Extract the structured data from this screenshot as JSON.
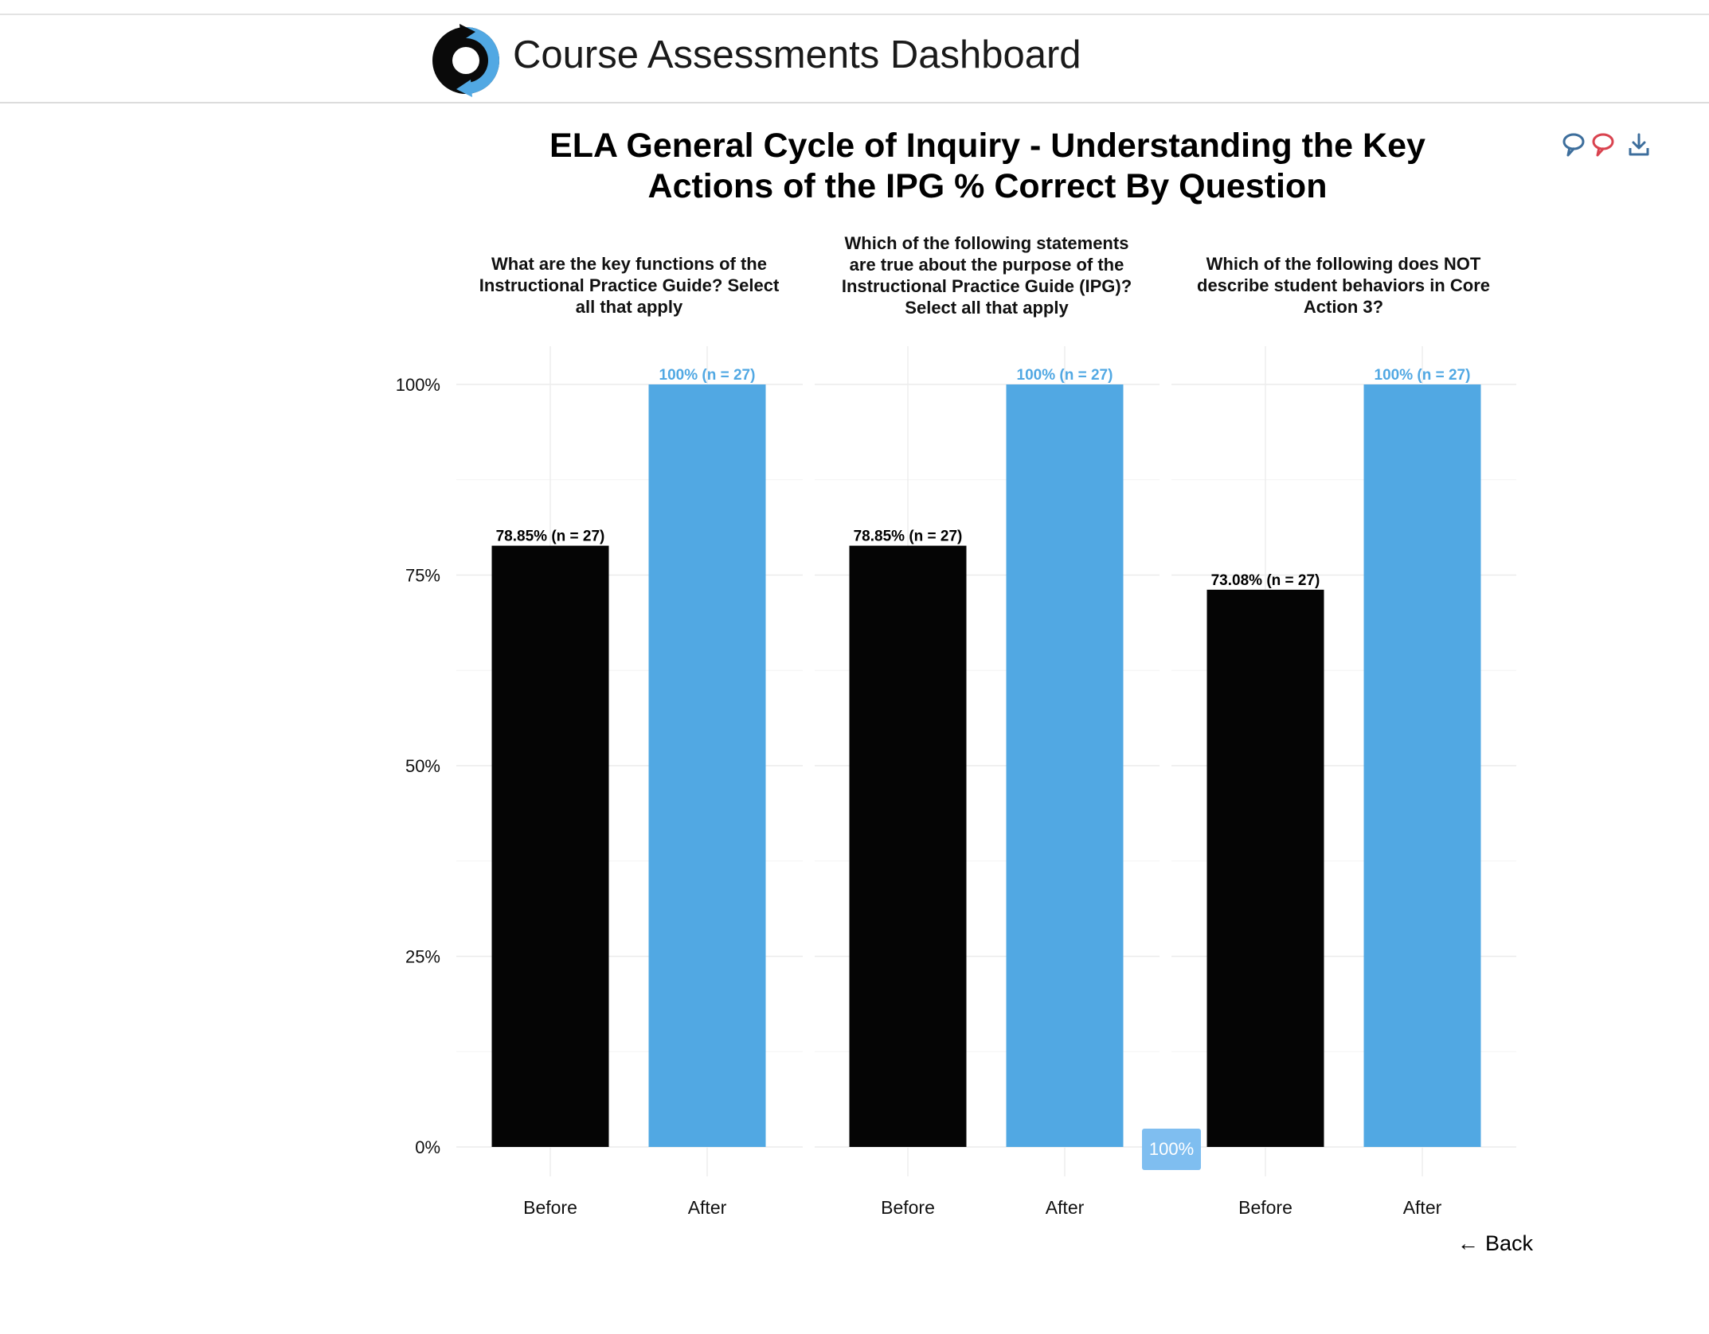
{
  "app": {
    "title": "Course Assessments Dashboard",
    "logo": "circular-arrows-logo"
  },
  "toolbar": {
    "icons": [
      "comment-icon",
      "comment-icon-red",
      "download-icon"
    ],
    "colors": {
      "comment": "#3d6e9c",
      "comment_alt": "#d9434f",
      "download": "#3d6e9c"
    }
  },
  "chart_data": {
    "type": "bar",
    "title": "ELA General Cycle of Inquiry - Understanding the Key Actions of the IPG % Correct By Question",
    "ylim": [
      0,
      100
    ],
    "ytick_values": [
      0,
      25,
      50,
      75,
      100
    ],
    "yticks": [
      "0%",
      "25%",
      "50%",
      "75%",
      "100%"
    ],
    "grid": true,
    "categories": [
      "Before",
      "After"
    ],
    "colors": {
      "Before": "#050505",
      "After": "#51a8e3"
    },
    "facets": [
      {
        "title": "What are the key functions of the Instructional Practice Guide? Select all that apply",
        "values": [
          78.85,
          100
        ],
        "labels": [
          "78.85% (n = 27)",
          "100% (n = 27)"
        ]
      },
      {
        "title": "Which of the following statements are true about the purpose of the Instructional Practice Guide (IPG)? Select all that apply",
        "values": [
          78.85,
          100
        ],
        "labels": [
          "78.85% (n = 27)",
          "100% (n = 27)"
        ]
      },
      {
        "title": "Which of the following does NOT describe student behaviors in Core Action 3?",
        "values": [
          73.08,
          100
        ],
        "labels": [
          "73.08% (n = 27)",
          "100% (n = 27)"
        ]
      }
    ]
  },
  "badge": {
    "text": "100%"
  },
  "nav": {
    "back_arrow": "←",
    "back_label": "Back"
  }
}
